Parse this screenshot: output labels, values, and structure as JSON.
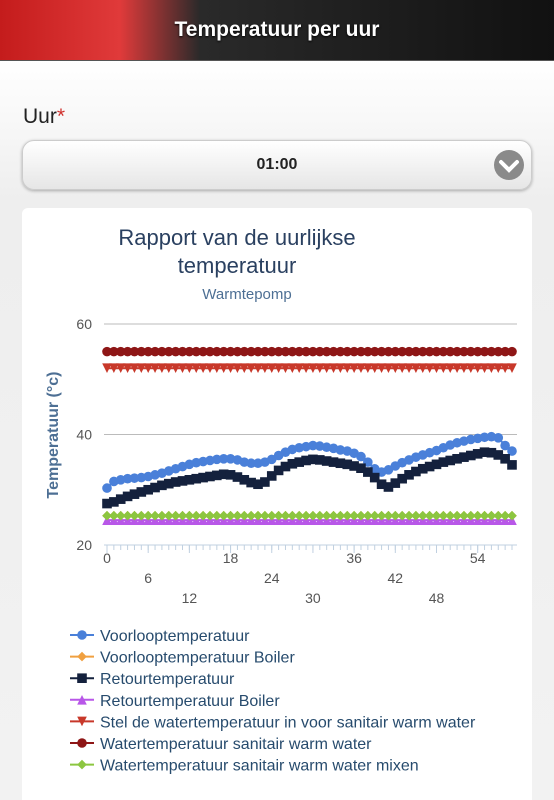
{
  "header": {
    "title": "Temperatuur per uur"
  },
  "form": {
    "label": "Uur",
    "required": "*",
    "selected": "01:00"
  },
  "chart_data": {
    "type": "line",
    "title": "Rapport van de uurlijkse temperatuur",
    "subtitle": "Warmtepomp",
    "y_label": "Temperatuur (°c)",
    "x": [
      0,
      1,
      2,
      3,
      4,
      5,
      6,
      7,
      8,
      9,
      10,
      11,
      12,
      13,
      14,
      15,
      16,
      17,
      18,
      19,
      20,
      21,
      22,
      23,
      24,
      25,
      26,
      27,
      28,
      29,
      30,
      31,
      32,
      33,
      34,
      35,
      36,
      37,
      38,
      39,
      40,
      41,
      42,
      43,
      44,
      45,
      46,
      47,
      48,
      49,
      50,
      51,
      52,
      53,
      54,
      55,
      56,
      57,
      58,
      59
    ],
    "xlim": [
      0,
      59
    ],
    "xticks": [
      0,
      6,
      12,
      18,
      24,
      30,
      36,
      42,
      48,
      54
    ],
    "ylim": [
      20,
      60
    ],
    "yticks": [
      20,
      40,
      60
    ],
    "grid": true,
    "series": [
      {
        "name": "Voorlooptemperatuur",
        "color": "#4a80d9",
        "marker": "circle",
        "values": [
          30.3,
          31.5,
          31.8,
          32,
          32.1,
          32.2,
          32.4,
          32.7,
          33,
          33.4,
          33.8,
          34.2,
          34.6,
          34.9,
          35.1,
          35.3,
          35.5,
          35.6,
          35.6,
          35.4,
          35,
          34.8,
          34.8,
          35,
          35.5,
          36.2,
          36.8,
          37.3,
          37.6,
          37.8,
          38,
          37.9,
          37.7,
          37.5,
          37.2,
          37,
          36.6,
          36,
          35,
          33.8,
          33.2,
          33.6,
          34.3,
          34.9,
          35.4,
          35.9,
          36.3,
          36.7,
          37.1,
          37.6,
          38.1,
          38.5,
          38.8,
          39.1,
          39.3,
          39.5,
          39.6,
          39.4,
          38,
          37
        ]
      },
      {
        "name": "Voorlooptemperatuur Boiler",
        "color": "#f0a040",
        "marker": "diamond",
        "values": [
          25.3,
          25.3,
          25.3,
          25.3,
          25.3,
          25.3,
          25.3,
          25.3,
          25.3,
          25.3,
          25.3,
          25.3,
          25.3,
          25.3,
          25.3,
          25.3,
          25.3,
          25.3,
          25.3,
          25.3,
          25.3,
          25.3,
          25.3,
          25.3,
          25.3,
          25.3,
          25.3,
          25.3,
          25.3,
          25.3,
          25.3,
          25.3,
          25.3,
          25.3,
          25.3,
          25.3,
          25.3,
          25.3,
          25.3,
          25.3,
          25.3,
          25.3,
          25.3,
          25.3,
          25.3,
          25.3,
          25.3,
          25.3,
          25.3,
          25.3,
          25.3,
          25.3,
          25.3,
          25.3,
          25.3,
          25.3,
          25.3,
          25.3,
          25.3,
          25.3
        ]
      },
      {
        "name": "Retourtemperatuur",
        "color": "#14213d",
        "marker": "square",
        "values": [
          27.5,
          27.8,
          28.3,
          28.8,
          29.2,
          29.6,
          30,
          30.4,
          30.8,
          31.1,
          31.4,
          31.6,
          31.8,
          32,
          32.2,
          32.4,
          32.6,
          32.8,
          32.7,
          32.3,
          31.8,
          31.3,
          31,
          31.4,
          32.5,
          33.5,
          34.2,
          34.7,
          35,
          35.3,
          35.5,
          35.4,
          35.2,
          35,
          34.8,
          34.6,
          34.3,
          33.9,
          33.2,
          32.2,
          31,
          30.5,
          31.2,
          32,
          32.7,
          33.3,
          33.8,
          34.2,
          34.6,
          35,
          35.3,
          35.6,
          35.9,
          36.2,
          36.5,
          36.8,
          36.7,
          36.3,
          35.6,
          34.5
        ]
      },
      {
        "name": "Retourtemperatuur Boiler",
        "color": "#b857e8",
        "marker": "triangle",
        "values": [
          24.5,
          24.5,
          24.5,
          24.5,
          24.5,
          24.5,
          24.5,
          24.5,
          24.5,
          24.5,
          24.5,
          24.5,
          24.5,
          24.5,
          24.5,
          24.5,
          24.5,
          24.5,
          24.5,
          24.5,
          24.5,
          24.5,
          24.5,
          24.5,
          24.5,
          24.5,
          24.5,
          24.5,
          24.5,
          24.5,
          24.5,
          24.5,
          24.5,
          24.5,
          24.5,
          24.5,
          24.5,
          24.5,
          24.5,
          24.5,
          24.5,
          24.5,
          24.5,
          24.5,
          24.5,
          24.5,
          24.5,
          24.5,
          24.5,
          24.5,
          24.5,
          24.5,
          24.5,
          24.5,
          24.5,
          24.5,
          24.5,
          24.5,
          24.5,
          24.5
        ]
      },
      {
        "name": "Stel de watertemperatuur in voor sanitair warm water",
        "color": "#c8382a",
        "marker": "triangle-down",
        "values": [
          52,
          52,
          52,
          52,
          52,
          52,
          52,
          52,
          52,
          52,
          52,
          52,
          52,
          52,
          52,
          52,
          52,
          52,
          52,
          52,
          52,
          52,
          52,
          52,
          52,
          52,
          52,
          52,
          52,
          52,
          52,
          52,
          52,
          52,
          52,
          52,
          52,
          52,
          52,
          52,
          52,
          52,
          52,
          52,
          52,
          52,
          52,
          52,
          52,
          52,
          52,
          52,
          52,
          52,
          52,
          52,
          52,
          52,
          52,
          52
        ]
      },
      {
        "name": "Watertemperatuur sanitair warm water",
        "color": "#8e1616",
        "marker": "circle",
        "values": [
          55,
          55,
          55,
          55,
          55,
          55,
          55,
          55,
          55,
          55,
          55,
          55,
          55,
          55,
          55,
          55,
          55,
          55,
          55,
          55,
          55,
          55,
          55,
          55,
          55,
          55,
          55,
          55,
          55,
          55,
          55,
          55,
          55,
          55,
          55,
          55,
          55,
          55,
          55,
          55,
          55,
          55,
          55,
          55,
          55,
          55,
          55,
          55,
          55,
          55,
          55,
          55,
          55,
          55,
          55,
          55,
          55,
          55,
          55,
          55
        ]
      },
      {
        "name": "Watertemperatuur sanitair warm water mixen",
        "color": "#8cc640",
        "marker": "diamond",
        "values": [
          25.3,
          25.3,
          25.3,
          25.3,
          25.3,
          25.3,
          25.3,
          25.3,
          25.3,
          25.3,
          25.3,
          25.3,
          25.3,
          25.3,
          25.3,
          25.3,
          25.3,
          25.3,
          25.3,
          25.3,
          25.3,
          25.3,
          25.3,
          25.3,
          25.3,
          25.3,
          25.3,
          25.3,
          25.3,
          25.3,
          25.3,
          25.3,
          25.3,
          25.3,
          25.3,
          25.3,
          25.3,
          25.3,
          25.3,
          25.3,
          25.3,
          25.3,
          25.3,
          25.3,
          25.3,
          25.3,
          25.3,
          25.3,
          25.3,
          25.3,
          25.3,
          25.3,
          25.3,
          25.3,
          25.3,
          25.3,
          25.3,
          25.3,
          25.3,
          25.3
        ]
      }
    ]
  }
}
